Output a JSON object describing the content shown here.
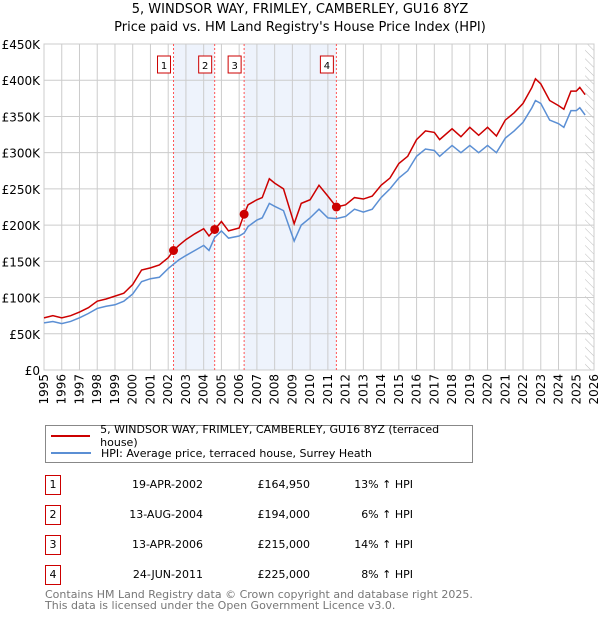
{
  "chart_data": {
    "type": "line",
    "title": "5, WINDSOR WAY, FRIMLEY, CAMBERLEY, GU16 8YZ",
    "subtitle": "Price paid vs. HM Land Registry's House Price Index (HPI)",
    "xlim": [
      1995,
      2026
    ],
    "ylim": [
      0,
      450000
    ],
    "yticks": [
      {
        "v": 0,
        "label": "£0"
      },
      {
        "v": 50000,
        "label": "£50K"
      },
      {
        "v": 100000,
        "label": "£100K"
      },
      {
        "v": 150000,
        "label": "£150K"
      },
      {
        "v": 200000,
        "label": "£200K"
      },
      {
        "v": 250000,
        "label": "£250K"
      },
      {
        "v": 300000,
        "label": "£300K"
      },
      {
        "v": 350000,
        "label": "£350K"
      },
      {
        "v": 400000,
        "label": "£400K"
      },
      {
        "v": 450000,
        "label": "£450K"
      }
    ],
    "xticks": [
      "1995",
      "1996",
      "1997",
      "1998",
      "1999",
      "2000",
      "2001",
      "2002",
      "2003",
      "2004",
      "2005",
      "2006",
      "2007",
      "2008",
      "2009",
      "2010",
      "2011",
      "2012",
      "2013",
      "2014",
      "2015",
      "2016",
      "2017",
      "2018",
      "2019",
      "2020",
      "2021",
      "2022",
      "2023",
      "2024",
      "2025",
      "2026"
    ],
    "grid": true,
    "forecast_hatch_from": 2025.5,
    "shaded_ranges": [
      [
        2002.3,
        2004.62
      ],
      [
        2006.28,
        2011.48
      ]
    ],
    "series": [
      {
        "name": "5, WINDSOR WAY, FRIMLEY, CAMBERLEY, GU16 8YZ (terraced house)",
        "color": "#cc0000",
        "x": [
          1995,
          1995.5,
          1996,
          1996.5,
          1997,
          1997.5,
          1998,
          1998.5,
          1999,
          1999.5,
          2000,
          2000.5,
          2001,
          2001.5,
          2002,
          2002.3,
          2002.6,
          2003,
          2003.5,
          2004,
          2004.3,
          2004.62,
          2005,
          2005.4,
          2006,
          2006.28,
          2006.5,
          2007,
          2007.3,
          2007.7,
          2008,
          2008.5,
          2009.1,
          2009.5,
          2010,
          2010.5,
          2011,
          2011.48,
          2012,
          2012.5,
          2013,
          2013.5,
          2014,
          2014.5,
          2015,
          2015.5,
          2016,
          2016.5,
          2017,
          2017.3,
          2018,
          2018.5,
          2019,
          2019.5,
          2020,
          2020.5,
          2021,
          2021.5,
          2022,
          2022.5,
          2022.7,
          2023,
          2023.5,
          2024,
          2024.3,
          2024.7,
          2025,
          2025.2,
          2025.5
        ],
        "y": [
          72000,
          75000,
          72000,
          75000,
          80000,
          86000,
          95000,
          98000,
          102000,
          106000,
          118000,
          138000,
          141000,
          145000,
          155000,
          165000,
          172000,
          180000,
          188000,
          195000,
          185000,
          194000,
          205000,
          192000,
          196000,
          215000,
          228000,
          235000,
          238000,
          264000,
          258000,
          250000,
          202000,
          230000,
          235000,
          255000,
          240000,
          225000,
          228000,
          238000,
          236000,
          240000,
          255000,
          265000,
          285000,
          295000,
          318000,
          330000,
          328000,
          318000,
          333000,
          322000,
          335000,
          324000,
          335000,
          323000,
          345000,
          355000,
          368000,
          390000,
          402000,
          395000,
          372000,
          365000,
          360000,
          385000,
          385000,
          390000,
          380000
        ]
      },
      {
        "name": "HPI: Average price, terraced house, Surrey Heath",
        "color": "#5b8fd4",
        "x": [
          1995,
          1995.5,
          1996,
          1996.5,
          1997,
          1997.5,
          1998,
          1998.5,
          1999,
          1999.5,
          2000,
          2000.5,
          2001,
          2001.5,
          2002,
          2002.3,
          2002.6,
          2003,
          2003.5,
          2004,
          2004.3,
          2004.62,
          2005,
          2005.4,
          2006,
          2006.28,
          2006.5,
          2007,
          2007.3,
          2007.7,
          2008,
          2008.5,
          2009.1,
          2009.5,
          2010,
          2010.5,
          2011,
          2011.48,
          2012,
          2012.5,
          2013,
          2013.5,
          2014,
          2014.5,
          2015,
          2015.5,
          2016,
          2016.5,
          2017,
          2017.3,
          2018,
          2018.5,
          2019,
          2019.5,
          2020,
          2020.5,
          2021,
          2021.5,
          2022,
          2022.5,
          2022.7,
          2023,
          2023.5,
          2024,
          2024.3,
          2024.7,
          2025,
          2025.2,
          2025.5
        ],
        "y": [
          65000,
          67000,
          64000,
          67000,
          72000,
          78000,
          85000,
          88000,
          90000,
          95000,
          105000,
          122000,
          126000,
          128000,
          140000,
          146000,
          152000,
          158000,
          165000,
          172000,
          165000,
          183000,
          192000,
          182000,
          185000,
          189000,
          198000,
          207000,
          210000,
          230000,
          226000,
          220000,
          178000,
          200000,
          210000,
          222000,
          210000,
          209000,
          212000,
          222000,
          218000,
          222000,
          238000,
          250000,
          265000,
          275000,
          295000,
          305000,
          303000,
          295000,
          310000,
          300000,
          310000,
          300000,
          310000,
          300000,
          320000,
          330000,
          342000,
          362000,
          372000,
          368000,
          345000,
          340000,
          335000,
          358000,
          358000,
          362000,
          352000
        ]
      }
    ],
    "sales": [
      {
        "n": "1",
        "x": 2002.3,
        "price": 164950
      },
      {
        "n": "2",
        "x": 2004.62,
        "price": 194000
      },
      {
        "n": "3",
        "x": 2006.28,
        "price": 215000
      },
      {
        "n": "4",
        "x": 2011.48,
        "price": 225000
      }
    ]
  },
  "legend": {
    "property": "5, WINDSOR WAY, FRIMLEY, CAMBERLEY, GU16 8YZ (terraced house)",
    "hpi": "HPI: Average price, terraced house, Surrey Heath"
  },
  "transactions": [
    {
      "n": "1",
      "date": "19-APR-2002",
      "price": "£164,950",
      "hpi": "13% ↑ HPI"
    },
    {
      "n": "2",
      "date": "13-AUG-2004",
      "price": "£194,000",
      "hpi": "6% ↑ HPI"
    },
    {
      "n": "3",
      "date": "13-APR-2006",
      "price": "£215,000",
      "hpi": "14% ↑ HPI"
    },
    {
      "n": "4",
      "date": "24-JUN-2011",
      "price": "£225,000",
      "hpi": "8% ↑ HPI"
    }
  ],
  "footer": {
    "line1": "Contains HM Land Registry data © Crown copyright and database right 2025.",
    "line2": "This data is licensed under the Open Government Licence v3.0."
  }
}
